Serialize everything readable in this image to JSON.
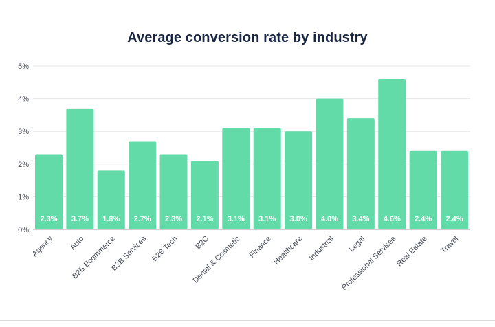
{
  "chart_data": {
    "type": "bar",
    "title": "Average conversion rate by industry",
    "xlabel": "",
    "ylabel": "",
    "ylim": [
      0,
      5
    ],
    "yticks": [
      0,
      1,
      2,
      3,
      4,
      5
    ],
    "ytick_labels": [
      "0%",
      "1%",
      "2%",
      "3%",
      "4%",
      "5%"
    ],
    "grid": true,
    "bar_color": "#62dba8",
    "categories": [
      "Agency",
      "Auto",
      "B2B Ecommerce",
      "B2B Services",
      "B2B Tech",
      "B2C",
      "Dental & Cosmetic",
      "Finance",
      "Healthcare",
      "Industrial",
      "Legal",
      "Professional Services",
      "Real Estate",
      "Travel"
    ],
    "values": [
      2.3,
      3.7,
      1.8,
      2.7,
      2.3,
      2.1,
      3.1,
      3.1,
      3.0,
      4.0,
      3.4,
      4.6,
      2.4,
      2.4
    ],
    "value_labels": [
      "2.3%",
      "3.7%",
      "1.8%",
      "2.7%",
      "2.3%",
      "2.1%",
      "3.1%",
      "3.1%",
      "3.0%",
      "4.0%",
      "3.4%",
      "4.6%",
      "2.4%",
      "2.4%"
    ]
  }
}
